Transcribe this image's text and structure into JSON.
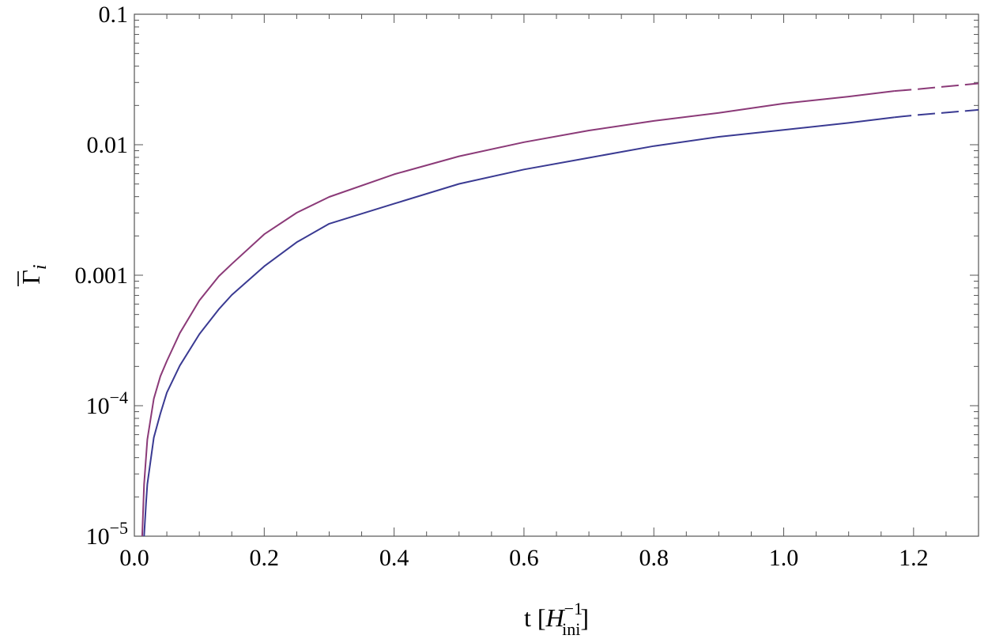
{
  "chart_data": {
    "type": "line",
    "title": "",
    "xlabel": "t [H_ini^-1]",
    "xlabel_parts": {
      "prefix": "t [",
      "base": "H",
      "sup": "−1",
      "sub": "ini",
      "suffix": "]"
    },
    "ylabel": "Γ̄_i",
    "ylabel_parts": {
      "base": "Γ",
      "sub": "i"
    },
    "x_scale": "linear",
    "y_scale": "log",
    "xlim": [
      0.0,
      1.3
    ],
    "ylim": [
      1e-05,
      0.1
    ],
    "x_ticks": [
      {
        "value": 0.0,
        "label": "0.0"
      },
      {
        "value": 0.2,
        "label": "0.2"
      },
      {
        "value": 0.4,
        "label": "0.4"
      },
      {
        "value": 0.6,
        "label": "0.6"
      },
      {
        "value": 0.8,
        "label": "0.8"
      },
      {
        "value": 1.0,
        "label": "1.0"
      },
      {
        "value": 1.2,
        "label": "1.2"
      }
    ],
    "y_ticks": [
      {
        "value": 1e-05,
        "label": "10",
        "exp": "−5"
      },
      {
        "value": 0.0001,
        "label": "10",
        "exp": "−4"
      },
      {
        "value": 0.001,
        "label": "0.001",
        "exp": ""
      },
      {
        "value": 0.01,
        "label": "0.01",
        "exp": ""
      },
      {
        "value": 0.1,
        "label": "0.1",
        "exp": ""
      }
    ],
    "grid": false,
    "legend": "none",
    "series": [
      {
        "color": "#8b3a78",
        "solid_until": 1.17,
        "x": [
          0.012,
          0.015,
          0.02,
          0.03,
          0.04,
          0.05,
          0.07,
          0.1,
          0.13,
          0.15,
          0.2,
          0.25,
          0.3,
          0.4,
          0.5,
          0.6,
          0.7,
          0.8,
          0.9,
          1.0,
          1.1,
          1.17,
          1.2,
          1.3
        ],
        "y": [
          1e-05,
          2.5e-05,
          5.5e-05,
          0.000113,
          0.000168,
          0.00022,
          0.00036,
          0.00064,
          0.00098,
          0.00122,
          0.00206,
          0.00301,
          0.00398,
          0.00593,
          0.00816,
          0.01045,
          0.01285,
          0.01523,
          0.01754,
          0.0207,
          0.0234,
          0.0258,
          0.0265,
          0.0295
        ]
      },
      {
        "color": "#3a3a92",
        "solid_until": 1.17,
        "x": [
          0.015,
          0.018,
          0.02,
          0.03,
          0.04,
          0.05,
          0.07,
          0.1,
          0.13,
          0.15,
          0.2,
          0.25,
          0.3,
          0.4,
          0.5,
          0.6,
          0.7,
          0.8,
          0.9,
          1.0,
          1.1,
          1.17,
          1.2,
          1.3
        ],
        "y": [
          1e-05,
          1.8e-05,
          2.5e-05,
          5.7e-05,
          8.7e-05,
          0.000126,
          0.000203,
          0.000353,
          0.000548,
          0.000705,
          0.00117,
          0.00179,
          0.00248,
          0.00353,
          0.00501,
          0.00646,
          0.00794,
          0.00977,
          0.0115,
          0.013,
          0.0147,
          0.0162,
          0.0168,
          0.0185
        ]
      }
    ]
  }
}
